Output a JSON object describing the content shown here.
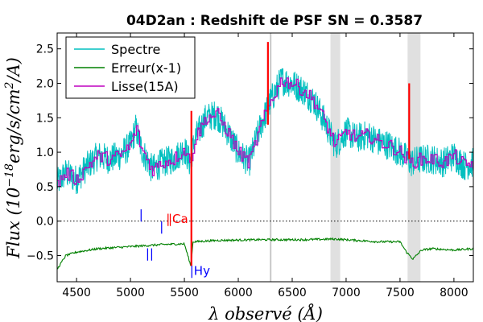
{
  "chart_data": {
    "type": "line",
    "title": "04D2an : Redshift de PSF SN = 0.3587",
    "xlabel": "λ observé (Å)",
    "ylabel": "Flux (10^-18 erg/s/cm²/A)",
    "ylabel_parts": {
      "a": "Flux (10",
      "exp": "−18",
      "b": "erg/s/cm",
      "exp2": "2",
      "c": "/A)"
    },
    "xlim": [
      4320,
      8180
    ],
    "ylim": [
      -0.88,
      2.73
    ],
    "xticks": [
      4500,
      5000,
      5500,
      6000,
      6500,
      7000,
      7500,
      8000
    ],
    "xtick_labels": [
      "4500",
      "5000",
      "5500",
      "6000",
      "6500",
      "7000",
      "7500",
      "8000"
    ],
    "yticks": [
      -0.5,
      0.0,
      0.5,
      1.0,
      1.5,
      2.0,
      2.5
    ],
    "ytick_labels": [
      "−0.5",
      "0.0",
      "0.5",
      "1.0",
      "1.5",
      "2.0",
      "2.5"
    ],
    "zero_line": 0.0,
    "legend": {
      "placement": "top-left",
      "entries": [
        {
          "label": "Spectre",
          "color": "#00bfbf"
        },
        {
          "label": "Erreur(x-1)",
          "color": "#008000"
        },
        {
          "label": "Lisse(15A)",
          "color": "#bf00bf"
        }
      ]
    },
    "shaded_bands": [
      {
        "x0": 6855,
        "x1": 6945
      },
      {
        "x0": 7570,
        "x1": 7690
      }
    ],
    "vlines": [
      {
        "x": 6300,
        "color": "#c8c8c8"
      }
    ],
    "series": [
      {
        "name": "Spectre",
        "color": "#00bfbf",
        "noise_amplitude": 0.22,
        "x": [
          4320,
          4400,
          4500,
          4600,
          4700,
          4800,
          4900,
          5000,
          5050,
          5100,
          5200,
          5300,
          5400,
          5500,
          5550,
          5600,
          5700,
          5800,
          5900,
          6000,
          6100,
          6200,
          6300,
          6400,
          6500,
          6600,
          6700,
          6800,
          6900,
          7000,
          7100,
          7200,
          7300,
          7400,
          7500,
          7600,
          7700,
          7800,
          7900,
          8000,
          8100,
          8180
        ],
        "y": [
          0.55,
          0.7,
          0.6,
          0.8,
          0.95,
          0.9,
          0.95,
          1.1,
          1.35,
          1.05,
          0.75,
          0.85,
          0.9,
          1.05,
          0.85,
          1.2,
          1.5,
          1.55,
          1.3,
          1.0,
          0.85,
          1.35,
          1.75,
          2.05,
          2.0,
          1.9,
          1.75,
          1.45,
          1.1,
          1.3,
          1.2,
          1.25,
          1.15,
          1.1,
          1.0,
          0.85,
          0.9,
          0.9,
          0.85,
          0.95,
          0.8,
          0.85
        ]
      },
      {
        "name": "Lisse(15A)",
        "color": "#bf00bf",
        "noise_amplitude": 0.1,
        "x": [
          4320,
          4400,
          4500,
          4600,
          4700,
          4800,
          4900,
          5000,
          5050,
          5100,
          5200,
          5300,
          5400,
          5500,
          5550,
          5600,
          5700,
          5800,
          5900,
          6000,
          6100,
          6200,
          6300,
          6400,
          6500,
          6600,
          6700,
          6800,
          6900,
          7000,
          7100,
          7200,
          7300,
          7400,
          7500,
          7600,
          7700,
          7800,
          7900,
          8000,
          8100,
          8180
        ],
        "y": [
          0.55,
          0.7,
          0.6,
          0.8,
          0.95,
          0.9,
          0.95,
          1.1,
          1.35,
          1.05,
          0.75,
          0.85,
          0.9,
          1.05,
          0.85,
          1.2,
          1.5,
          1.55,
          1.3,
          1.0,
          0.85,
          1.35,
          1.75,
          2.05,
          2.0,
          1.9,
          1.75,
          1.45,
          1.1,
          1.3,
          1.2,
          1.25,
          1.15,
          1.1,
          1.0,
          0.85,
          0.9,
          0.9,
          0.85,
          0.95,
          0.8,
          0.85
        ]
      },
      {
        "name": "Erreur(x-1)",
        "color": "#008000",
        "noise_amplitude": 0.015,
        "x": [
          4320,
          4400,
          4500,
          4700,
          5000,
          5300,
          5500,
          5560,
          5580,
          5800,
          6200,
          6600,
          6900,
          7100,
          7300,
          7500,
          7560,
          7620,
          7700,
          7800,
          8000,
          8180
        ],
        "y": [
          -0.7,
          -0.5,
          -0.45,
          -0.4,
          -0.37,
          -0.34,
          -0.33,
          -0.65,
          -0.3,
          -0.28,
          -0.27,
          -0.27,
          -0.26,
          -0.28,
          -0.3,
          -0.3,
          -0.45,
          -0.55,
          -0.42,
          -0.4,
          -0.42,
          -0.4
        ]
      }
    ],
    "red_spikes": [
      {
        "x": 5565,
        "y0": -0.65,
        "y1": 1.6
      },
      {
        "x": 6275,
        "y0": 1.4,
        "y1": 2.6
      },
      {
        "x": 7585,
        "y0": 0.9,
        "y1": 2.0
      }
    ],
    "annotations": [
      {
        "text": "|",
        "x": 5080,
        "y": 0.04,
        "color": "#0000ff"
      },
      {
        "text": "|",
        "x": 5270,
        "y": -0.14,
        "color": "#0000ff"
      },
      {
        "text": "||",
        "x": 5140,
        "y": -0.53,
        "color": "#0000ff"
      },
      {
        "text": "|",
        "x": 5330,
        "y": -0.03,
        "color": "#ff0000"
      },
      {
        "text": "|Ca",
        "x": 5350,
        "y": -0.03,
        "color": "#ff0000"
      },
      {
        "text": "|Hy",
        "x": 5550,
        "y": -0.78,
        "color": "#0000ff"
      }
    ]
  }
}
